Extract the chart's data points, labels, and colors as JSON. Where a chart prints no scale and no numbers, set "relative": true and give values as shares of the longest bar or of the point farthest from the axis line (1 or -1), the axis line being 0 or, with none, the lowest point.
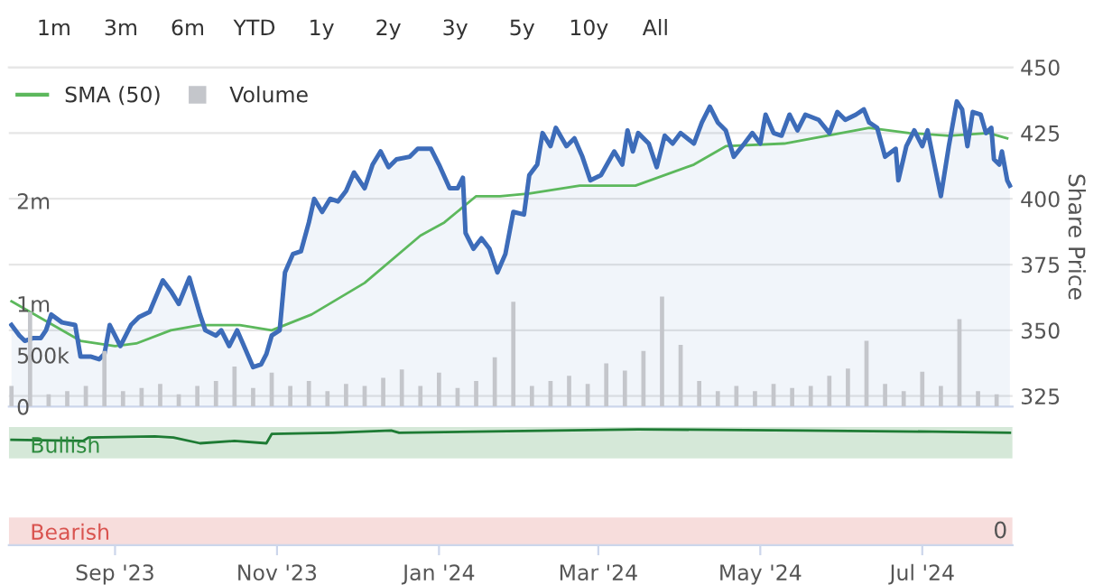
{
  "chart_data": [
    {
      "type": "line",
      "xlim": [
        "2023-07-23",
        "2024-08-04"
      ],
      "ylim": [
        321,
        450
      ],
      "yticks": [
        325,
        350,
        375,
        400,
        425,
        450
      ],
      "y2lim": [
        0,
        3300000
      ],
      "y2ticks": [
        0,
        {
          "value": 500000,
          "label": "500k"
        },
        {
          "value": 1000000,
          "label": "1m"
        },
        {
          "value": 2000000,
          "label": "2m"
        }
      ],
      "ylabel": "Share Price",
      "grid": "y",
      "legend": "top left",
      "tick_labels": "y",
      "annotations": [
        "1m",
        "3m",
        "6m",
        "YTD",
        "1y",
        "2y",
        "3y",
        "5y",
        "10y",
        "All"
      ],
      "series": [
        {
          "type": "area",
          "color": "#3d6cb9",
          "x": [
            "2023-07-24",
            "2023-07-27",
            "2023-07-29",
            "2023-08-01",
            "2023-08-04",
            "2023-08-06",
            "2023-08-08",
            "2023-08-12",
            "2023-08-17",
            "2023-08-19",
            "2023-08-23",
            "2023-08-26",
            "2023-08-28",
            "2023-08-30",
            "2023-09-03",
            "2023-09-07",
            "2023-09-10",
            "2023-09-14",
            "2023-09-19",
            "2023-09-22",
            "2023-09-25",
            "2023-09-29",
            "2023-10-03",
            "2023-10-05",
            "2023-10-09",
            "2023-10-11",
            "2023-10-14",
            "2023-10-17",
            "2023-10-20",
            "2023-10-23",
            "2023-10-26",
            "2023-10-28",
            "2023-10-30",
            "2023-11-02",
            "2023-11-04",
            "2023-11-07",
            "2023-11-10",
            "2023-11-13",
            "2023-11-15",
            "2023-11-18",
            "2023-11-21",
            "2023-11-24",
            "2023-11-27",
            "2023-11-30",
            "2023-12-04",
            "2023-12-07",
            "2023-12-10",
            "2023-12-13",
            "2023-12-16",
            "2023-12-21",
            "2023-12-24",
            "2023-12-29",
            "2024-01-01",
            "2024-01-05",
            "2024-01-08",
            "2024-01-10",
            "2024-01-11",
            "2024-01-14",
            "2024-01-17",
            "2024-01-20",
            "2024-01-23",
            "2024-01-26",
            "2024-01-29",
            "2024-02-02",
            "2024-02-04",
            "2024-02-07",
            "2024-02-09",
            "2024-02-12",
            "2024-02-14",
            "2024-02-18",
            "2024-02-21",
            "2024-02-24",
            "2024-02-27",
            "2024-03-02",
            "2024-03-07",
            "2024-03-10",
            "2024-03-12",
            "2024-03-14",
            "2024-03-16",
            "2024-03-20",
            "2024-03-23",
            "2024-03-26",
            "2024-03-29",
            "2024-04-01",
            "2024-04-06",
            "2024-04-09",
            "2024-04-12",
            "2024-04-15",
            "2024-04-18",
            "2024-04-21",
            "2024-04-25",
            "2024-04-28",
            "2024-05-01",
            "2024-05-03",
            "2024-05-06",
            "2024-05-09",
            "2024-05-12",
            "2024-05-15",
            "2024-05-18",
            "2024-05-23",
            "2024-05-27",
            "2024-05-30",
            "2024-06-02",
            "2024-06-06",
            "2024-06-09",
            "2024-06-11",
            "2024-06-14",
            "2024-06-17",
            "2024-06-21",
            "2024-06-22",
            "2024-06-25",
            "2024-06-28",
            "2024-07-01",
            "2024-07-03",
            "2024-07-06",
            "2024-07-08",
            "2024-07-11",
            "2024-07-14",
            "2024-07-16",
            "2024-07-18",
            "2024-07-20",
            "2024-07-23",
            "2024-07-25",
            "2024-07-27",
            "2024-07-28",
            "2024-07-30",
            "2024-07-31",
            "2024-08-02",
            "2024-08-03"
          ],
          "values": [
            352,
            348,
            346,
            347,
            347,
            350,
            356,
            353,
            352,
            340,
            340,
            339,
            341,
            352,
            344,
            352,
            355,
            357,
            369,
            365,
            360,
            370,
            356,
            350,
            348,
            350,
            344,
            350,
            343,
            336,
            337,
            341,
            348,
            350,
            372,
            379,
            380,
            391,
            400,
            395,
            400,
            399,
            403,
            410,
            404,
            413,
            418,
            412,
            415,
            416,
            419,
            419,
            413,
            404,
            404,
            408,
            387,
            381,
            385,
            381,
            372,
            379,
            395,
            394,
            409,
            413,
            425,
            420,
            427,
            420,
            423,
            416,
            407,
            409,
            418,
            413,
            426,
            418,
            425,
            421,
            412,
            424,
            421,
            425,
            421,
            429,
            435,
            429,
            426,
            416,
            421,
            425,
            421,
            432,
            425,
            424,
            432,
            426,
            432,
            430,
            425,
            433,
            430,
            432,
            434,
            429,
            427,
            416,
            419,
            407,
            420,
            426,
            420,
            426,
            411,
            401,
            420,
            437,
            434,
            420,
            433,
            432,
            425,
            427,
            415,
            413,
            418,
            407,
            405
          ]
        },
        {
          "name": "SMA (50)",
          "type": "line",
          "color": "#5cb85c",
          "x": [
            "2023-07-24",
            "2023-08-19",
            "2023-09-01",
            "2023-09-09",
            "2023-09-22",
            "2023-10-03",
            "2023-10-18",
            "2023-10-30",
            "2023-11-14",
            "2023-12-04",
            "2023-12-25",
            "2024-01-03",
            "2024-01-15",
            "2024-01-24",
            "2024-02-04",
            "2024-02-23",
            "2024-03-15",
            "2024-04-06",
            "2024-04-18",
            "2024-05-10",
            "2024-06-11",
            "2024-06-26",
            "2024-07-11",
            "2024-07-26",
            "2024-08-02"
          ],
          "values": [
            361,
            346,
            344,
            345,
            350,
            352,
            352,
            350,
            356,
            368,
            386,
            391,
            401,
            401,
            402,
            405,
            405,
            413,
            420,
            421,
            427,
            425,
            424,
            425,
            423
          ]
        },
        {
          "name": "Volume",
          "type": "bar",
          "axis": "y2",
          "color": "#c4c6cb",
          "x": [
            "2023-07-24",
            "2023-07-31",
            "2023-08-07",
            "2023-08-14",
            "2023-08-21",
            "2023-08-28",
            "2023-09-04",
            "2023-09-11",
            "2023-09-18",
            "2023-09-25",
            "2023-10-02",
            "2023-10-09",
            "2023-10-16",
            "2023-10-23",
            "2023-10-30",
            "2023-11-06",
            "2023-11-13",
            "2023-11-20",
            "2023-11-27",
            "2023-12-04",
            "2023-12-11",
            "2023-12-18",
            "2023-12-25",
            "2024-01-01",
            "2024-01-08",
            "2024-01-15",
            "2024-01-22",
            "2024-01-29",
            "2024-02-05",
            "2024-02-12",
            "2024-02-19",
            "2024-02-26",
            "2024-03-04",
            "2024-03-11",
            "2024-03-18",
            "2024-03-25",
            "2024-04-01",
            "2024-04-08",
            "2024-04-15",
            "2024-04-22",
            "2024-04-29",
            "2024-05-06",
            "2024-05-13",
            "2024-05-20",
            "2024-05-27",
            "2024-06-03",
            "2024-06-10",
            "2024-06-17",
            "2024-06-24",
            "2024-07-01",
            "2024-07-08",
            "2024-07-15",
            "2024-07-22",
            "2024-07-29"
          ],
          "values": [
            200000,
            920000,
            120000,
            150000,
            200000,
            540000,
            150000,
            180000,
            220000,
            120000,
            200000,
            250000,
            390000,
            180000,
            330000,
            200000,
            250000,
            150000,
            220000,
            200000,
            280000,
            360000,
            200000,
            330000,
            180000,
            250000,
            480000,
            1020000,
            200000,
            250000,
            300000,
            220000,
            420000,
            350000,
            540000,
            1070000,
            600000,
            250000,
            150000,
            200000,
            150000,
            220000,
            180000,
            200000,
            300000,
            370000,
            640000,
            220000,
            150000,
            340000,
            200000,
            850000,
            150000,
            120000
          ]
        }
      ]
    },
    {
      "type": "line",
      "relative": true,
      "xlim": [
        "2023-07-23",
        "2024-08-04"
      ],
      "xticks": [
        {
          "value": "2023-09-01",
          "label": "Sep '23"
        },
        {
          "value": "2023-11-01",
          "label": "Nov '23"
        },
        {
          "value": "2024-01-01",
          "label": "Jan '24"
        },
        {
          "value": "2024-03-01",
          "label": "Mar '24"
        },
        {
          "value": "2024-05-01",
          "label": "May '24"
        },
        {
          "value": "2024-07-01",
          "label": "Jul '24"
        }
      ],
      "tick_labels": "x",
      "annotations": [
        "0"
      ],
      "bands": [
        {
          "axis": "y",
          "from": 0.75,
          "to": 1.02,
          "label": "Bullish",
          "color": "#2e8b3e"
        },
        {
          "axis": "y",
          "from": 0,
          "to": 0.24,
          "label": "Bearish",
          "color": "#d9534f"
        }
      ],
      "series": [
        {
          "color": "#1e7b34",
          "x": [
            "2023-07-24",
            "2023-08-20",
            "2023-08-22",
            "2023-09-16",
            "2023-09-23",
            "2023-10-03",
            "2023-10-16",
            "2023-10-28",
            "2023-10-30",
            "2023-11-22",
            "2023-12-14",
            "2023-12-17",
            "2024-03-16",
            "2024-05-17",
            "2024-07-05",
            "2024-08-03"
          ],
          "values": [
            0.91,
            0.9,
            0.93,
            0.94,
            0.93,
            0.88,
            0.9,
            0.88,
            0.96,
            0.97,
            0.99,
            0.97,
            1,
            0.99,
            0.98,
            0.97
          ]
        }
      ]
    }
  ]
}
